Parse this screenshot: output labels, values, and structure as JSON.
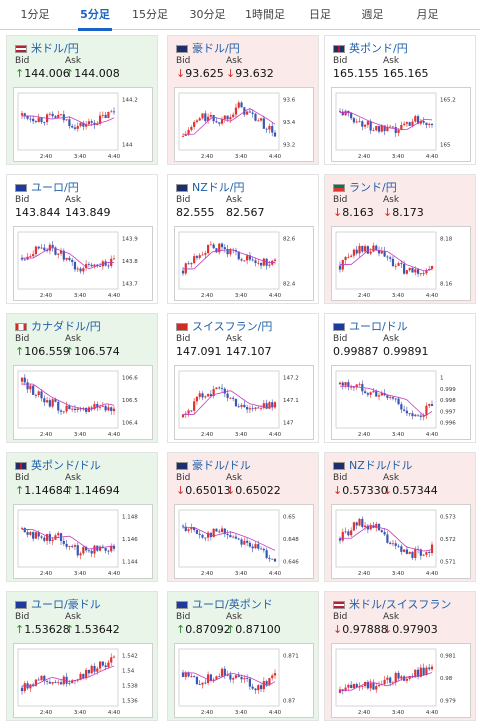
{
  "tabs": [
    "1分足",
    "5分足",
    "15分足",
    "30分足",
    "1時間足",
    "日足",
    "週足",
    "月足"
  ],
  "active_tab": 1,
  "bid_label": "Bid",
  "ask_label": "Ask",
  "colors": {
    "up": "#2a8a2a",
    "down": "#d12a2a",
    "candle_up": "#e0332f",
    "candle_down": "#3a56b4",
    "ma": "#c43ac4"
  },
  "cards": [
    {
      "pair": "米ドル/円",
      "flag": "us",
      "dir": "up",
      "bid": "144.006",
      "ask": "144.008",
      "y_ticks": [
        "144.2",
        "144"
      ],
      "x_ticks": [
        "2:40",
        "3:40",
        "4:40"
      ],
      "trend": [
        0.62,
        0.55,
        0.6,
        0.4,
        0.5,
        0.7
      ]
    },
    {
      "pair": "豪ドル/円",
      "flag": "au",
      "dir": "down",
      "bid": "93.625",
      "ask": "93.632",
      "y_ticks": [
        "93.6",
        "93.4",
        "93.2"
      ],
      "x_ticks": [
        "2:40",
        "3:40",
        "4:40"
      ],
      "trend": [
        0.2,
        0.6,
        0.5,
        0.8,
        0.55,
        0.25
      ]
    },
    {
      "pair": "英ポンド/円",
      "flag": "gb",
      "dir": "flat",
      "bid": "165.155",
      "ask": "165.165",
      "y_ticks": [
        "165.2",
        "165"
      ],
      "x_ticks": [
        "2:40",
        "3:40",
        "4:40"
      ],
      "trend": [
        0.7,
        0.5,
        0.35,
        0.3,
        0.55,
        0.5
      ]
    },
    {
      "pair": "ユーロ/円",
      "flag": "eu",
      "dir": "flat",
      "bid": "143.844",
      "ask": "143.849",
      "y_ticks": [
        "143.9",
        "143.8",
        "143.7"
      ],
      "x_ticks": [
        "2:40",
        "3:40",
        "4:40"
      ],
      "trend": [
        0.55,
        0.8,
        0.65,
        0.3,
        0.45,
        0.45
      ]
    },
    {
      "pair": "NZドル/円",
      "flag": "nz",
      "dir": "flat",
      "bid": "82.555",
      "ask": "82.567",
      "y_ticks": [
        "82.6",
        "82.4"
      ],
      "x_ticks": [
        "2:40",
        "3:40",
        "4:40"
      ],
      "trend": [
        0.3,
        0.7,
        0.75,
        0.6,
        0.45,
        0.45
      ]
    },
    {
      "pair": "ランド/円",
      "flag": "za",
      "dir": "down",
      "bid": "8.163",
      "ask": "8.173",
      "y_ticks": [
        "8.18",
        "8.16"
      ],
      "x_ticks": [
        "2:40",
        "3:40",
        "4:40"
      ],
      "trend": [
        0.4,
        0.75,
        0.7,
        0.4,
        0.25,
        0.35
      ]
    },
    {
      "pair": "カナダドル/円",
      "flag": "ca",
      "dir": "up",
      "bid": "106.559",
      "ask": "106.574",
      "y_ticks": [
        "106.6",
        "106.5",
        "106.4"
      ],
      "x_ticks": [
        "2:40",
        "3:40",
        "4:40"
      ],
      "trend": [
        0.85,
        0.55,
        0.35,
        0.25,
        0.4,
        0.3
      ]
    },
    {
      "pair": "スイスフラン/円",
      "flag": "ch",
      "dir": "flat",
      "bid": "147.091",
      "ask": "147.107",
      "y_ticks": [
        "147.2",
        "147.1",
        "147"
      ],
      "x_ticks": [
        "2:40",
        "3:40",
        "4:40"
      ],
      "trend": [
        0.15,
        0.6,
        0.7,
        0.4,
        0.3,
        0.45
      ]
    },
    {
      "pair": "ユーロ/ドル",
      "flag": "eu",
      "dir": "flat",
      "bid": "0.99887",
      "ask": "0.99891",
      "y_ticks": [
        "1",
        "0.999",
        "0.998",
        "0.997",
        "0.996"
      ],
      "x_ticks": [
        "2:40",
        "3:40",
        "4:40"
      ],
      "trend": [
        0.8,
        0.75,
        0.6,
        0.5,
        0.1,
        0.4
      ]
    },
    {
      "pair": "英ポンド/ドル",
      "flag": "gb",
      "dir": "up",
      "bid": "1.14684",
      "ask": "1.14694",
      "y_ticks": [
        "1.148",
        "1.146",
        "1.144"
      ],
      "x_ticks": [
        "2:40",
        "3:40",
        "4:40"
      ],
      "trend": [
        0.7,
        0.5,
        0.55,
        0.25,
        0.3,
        0.35
      ]
    },
    {
      "pair": "豪ドル/ドル",
      "flag": "au",
      "dir": "down",
      "bid": "0.65013",
      "ask": "0.65022",
      "y_ticks": [
        "0.65",
        "0.648",
        "0.646"
      ],
      "x_ticks": [
        "2:40",
        "3:40",
        "4:40"
      ],
      "trend": [
        0.75,
        0.55,
        0.65,
        0.5,
        0.3,
        0.1
      ]
    },
    {
      "pair": "NZドル/ドル",
      "flag": "nz",
      "dir": "down",
      "bid": "0.57330",
      "ask": "0.57344",
      "y_ticks": [
        "0.573",
        "0.572",
        "0.571"
      ],
      "x_ticks": [
        "2:40",
        "3:40",
        "4:40"
      ],
      "trend": [
        0.5,
        0.8,
        0.7,
        0.3,
        0.2,
        0.3
      ]
    },
    {
      "pair": "ユーロ/豪ドル",
      "flag": "eu",
      "dir": "up",
      "bid": "1.53628",
      "ask": "1.53642",
      "y_ticks": [
        "1.542",
        "1.54",
        "1.538",
        "1.536"
      ],
      "x_ticks": [
        "2:40",
        "3:40",
        "4:40"
      ],
      "trend": [
        0.3,
        0.5,
        0.4,
        0.5,
        0.7,
        0.85
      ]
    },
    {
      "pair": "ユーロ/英ポンド",
      "flag": "eu",
      "dir": "up",
      "bid": "0.87092",
      "ask": "0.87100",
      "y_ticks": [
        "0.871",
        "0.87"
      ],
      "x_ticks": [
        "2:40",
        "3:40",
        "4:40"
      ],
      "trend": [
        0.6,
        0.4,
        0.6,
        0.5,
        0.3,
        0.55
      ]
    },
    {
      "pair": "米ドル/スイスフラン",
      "flag": "us",
      "dir": "down",
      "bid": "0.97888",
      "ask": "0.97903",
      "y_ticks": [
        "0.981",
        "0.98",
        "0.979"
      ],
      "x_ticks": [
        "2:40",
        "3:40",
        "4:40"
      ],
      "trend": [
        0.2,
        0.4,
        0.3,
        0.5,
        0.55,
        0.7
      ]
    }
  ]
}
